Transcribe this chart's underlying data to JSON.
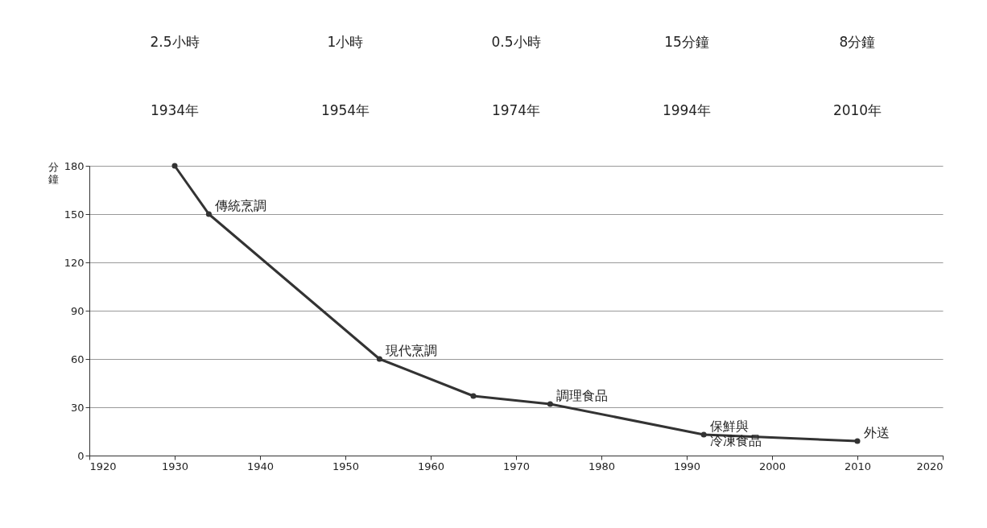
{
  "chart_data": {
    "type": "line",
    "ylabel": "分鐘",
    "x": [
      1930,
      1934,
      1954,
      1965,
      1974,
      1992,
      2010
    ],
    "series": [
      {
        "color": "#333333",
        "values": [
          180,
          150,
          60,
          37,
          32,
          13,
          9
        ]
      }
    ],
    "xlim": [
      1920,
      2020
    ],
    "xticks": [
      1920,
      1930,
      1940,
      1950,
      1960,
      1970,
      1980,
      1990,
      2000,
      2010,
      2020
    ],
    "ylim": [
      0,
      180
    ],
    "yticks": [
      0,
      30,
      60,
      90,
      120,
      150,
      180
    ],
    "grid": "y",
    "marker": "circle",
    "line_style": "solid",
    "annotations": [
      {
        "text": "傳統烹調",
        "x": 1934,
        "y": 150
      },
      {
        "text": "現代烹調",
        "x": 1954,
        "y": 60
      },
      {
        "text": "調理食品",
        "x": 1974,
        "y": 32
      },
      {
        "text": "保鮮與冷凍食品",
        "x": 1992,
        "y": 13
      },
      {
        "text": "外送",
        "x": 2010,
        "y": 9
      },
      "2.5小時",
      "1934年",
      "1小時",
      "1954年",
      "0.5小時",
      "1974年",
      "15分鐘",
      "1994年",
      "8分鐘",
      "2010年"
    ]
  }
}
